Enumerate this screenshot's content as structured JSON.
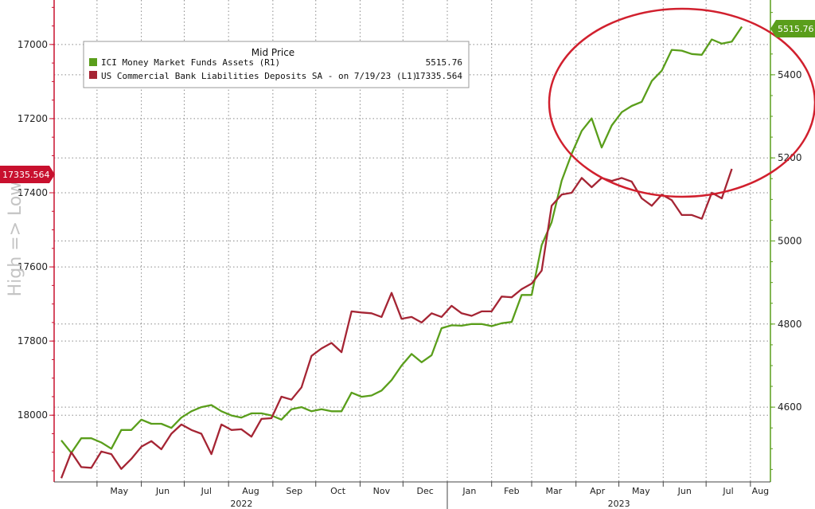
{
  "chart_data": {
    "type": "line",
    "ylabel": "High => Low",
    "legend": {
      "title": "Mid Price",
      "placement": "top-left",
      "entries": [
        {
          "name": "ICI Money Market Funds Assets  (R1)",
          "value": "5515.76",
          "color": "#5a9e1b"
        },
        {
          "name": "US Commercial Bank Liabilities Deposits SA -  on 7/19/23  (L1)",
          "value": "17335.564",
          "color": "#a52534"
        }
      ]
    },
    "x_months": [
      "May",
      "Jun",
      "Jul",
      "Aug",
      "Sep",
      "Oct",
      "Nov",
      "Dec",
      "Jan",
      "Feb",
      "Mar",
      "Apr",
      "May",
      "Jun",
      "Jul",
      "Aug"
    ],
    "x_years": [
      "2022",
      "2023"
    ],
    "left_axis": {
      "ticks": [
        17000,
        17200,
        17400,
        17600,
        17800,
        18000
      ],
      "range": [
        16880,
        18180
      ],
      "inverted": true
    },
    "right_axis": {
      "ticks": [
        5400,
        5200,
        5000,
        4800,
        4600
      ],
      "range": [
        4420,
        5580
      ],
      "inverted": false
    },
    "left_badge": {
      "text": "17335.564",
      "color": "#c8102e"
    },
    "right_badge": {
      "text": "5515.76",
      "color": "#5a9e1b"
    },
    "grid": true,
    "annotation": "red ellipse highlighting Apr-Jul 2023",
    "series": [
      {
        "name": "ICI Money Market Funds Assets (R1)",
        "axis": "right",
        "color": "#5a9e1b",
        "dates": [
          "2022-04-06",
          "2022-04-13",
          "2022-04-20",
          "2022-04-27",
          "2022-05-04",
          "2022-05-11",
          "2022-05-18",
          "2022-05-25",
          "2022-06-01",
          "2022-06-08",
          "2022-06-15",
          "2022-06-22",
          "2022-06-29",
          "2022-07-06",
          "2022-07-13",
          "2022-07-20",
          "2022-07-27",
          "2022-08-03",
          "2022-08-10",
          "2022-08-17",
          "2022-08-24",
          "2022-08-31",
          "2022-09-07",
          "2022-09-14",
          "2022-09-21",
          "2022-09-28",
          "2022-10-05",
          "2022-10-12",
          "2022-10-19",
          "2022-10-26",
          "2022-11-02",
          "2022-11-09",
          "2022-11-16",
          "2022-11-23",
          "2022-11-30",
          "2022-12-07",
          "2022-12-14",
          "2022-12-21",
          "2022-12-28",
          "2023-01-04",
          "2023-01-11",
          "2023-01-18",
          "2023-01-25",
          "2023-02-01",
          "2023-02-08",
          "2023-02-15",
          "2023-02-22",
          "2023-03-01",
          "2023-03-08",
          "2023-03-15",
          "2023-03-22",
          "2023-03-29",
          "2023-04-05",
          "2023-04-12",
          "2023-04-19",
          "2023-04-26",
          "2023-05-03",
          "2023-05-10",
          "2023-05-17",
          "2023-05-24",
          "2023-05-31",
          "2023-06-07",
          "2023-06-14",
          "2023-06-21",
          "2023-06-28",
          "2023-07-05",
          "2023-07-12",
          "2023-07-19",
          "2023-07-26"
        ],
        "values": [
          4520,
          4490,
          4525,
          4525,
          4515,
          4500,
          4545,
          4545,
          4570,
          4560,
          4560,
          4550,
          4575,
          4590,
          4600,
          4605,
          4590,
          4580,
          4575,
          4585,
          4585,
          4580,
          4570,
          4595,
          4600,
          4590,
          4595,
          4590,
          4590,
          4635,
          4625,
          4628,
          4640,
          4665,
          4700,
          4728,
          4708,
          4725,
          4790,
          4797,
          4796,
          4800,
          4800,
          4795,
          4802,
          4805,
          4870,
          4870,
          4990,
          5045,
          5145,
          5210,
          5265,
          5295,
          5225,
          5278,
          5310,
          5325,
          5335,
          5385,
          5410,
          5460,
          5458,
          5450,
          5448,
          5485,
          5475,
          5480,
          5515.76
        ]
      },
      {
        "name": "US Commercial Bank Liabilities Deposits SA - on 7/19/23 (L1)",
        "axis": "left",
        "color": "#a52534",
        "dates": [
          "2022-04-06",
          "2022-04-13",
          "2022-04-20",
          "2022-04-27",
          "2022-05-04",
          "2022-05-11",
          "2022-05-18",
          "2022-05-25",
          "2022-06-01",
          "2022-06-08",
          "2022-06-15",
          "2022-06-22",
          "2022-06-29",
          "2022-07-06",
          "2022-07-13",
          "2022-07-20",
          "2022-07-27",
          "2022-08-03",
          "2022-08-10",
          "2022-08-17",
          "2022-08-24",
          "2022-08-31",
          "2022-09-07",
          "2022-09-14",
          "2022-09-21",
          "2022-09-28",
          "2022-10-05",
          "2022-10-12",
          "2022-10-19",
          "2022-10-26",
          "2022-11-02",
          "2022-11-09",
          "2022-11-16",
          "2022-11-23",
          "2022-11-30",
          "2022-12-07",
          "2022-12-14",
          "2022-12-21",
          "2022-12-28",
          "2023-01-04",
          "2023-01-11",
          "2023-01-18",
          "2023-01-25",
          "2023-02-01",
          "2023-02-08",
          "2023-02-15",
          "2023-02-22",
          "2023-03-01",
          "2023-03-08",
          "2023-03-15",
          "2023-03-22",
          "2023-03-29",
          "2023-04-05",
          "2023-04-12",
          "2023-04-19",
          "2023-04-26",
          "2023-05-03",
          "2023-05-10",
          "2023-05-17",
          "2023-05-24",
          "2023-05-31",
          "2023-06-07",
          "2023-06-14",
          "2023-06-21",
          "2023-06-28",
          "2023-07-05",
          "2023-07-12",
          "2023-07-19"
        ],
        "values": [
          18170,
          18100,
          18140,
          18142,
          18098,
          18105,
          18145,
          18118,
          18085,
          18070,
          18092,
          18050,
          18025,
          18040,
          18050,
          18105,
          18025,
          18040,
          18038,
          18058,
          18010,
          18008,
          17950,
          17958,
          17925,
          17840,
          17820,
          17805,
          17830,
          17720,
          17723,
          17725,
          17735,
          17670,
          17740,
          17735,
          17750,
          17725,
          17735,
          17705,
          17725,
          17732,
          17720,
          17720,
          17680,
          17682,
          17660,
          17645,
          17610,
          17435,
          17405,
          17400,
          17360,
          17385,
          17360,
          17368,
          17360,
          17370,
          17415,
          17435,
          17405,
          17420,
          17460,
          17460,
          17470,
          17400,
          17415,
          17335.564
        ]
      }
    ]
  }
}
